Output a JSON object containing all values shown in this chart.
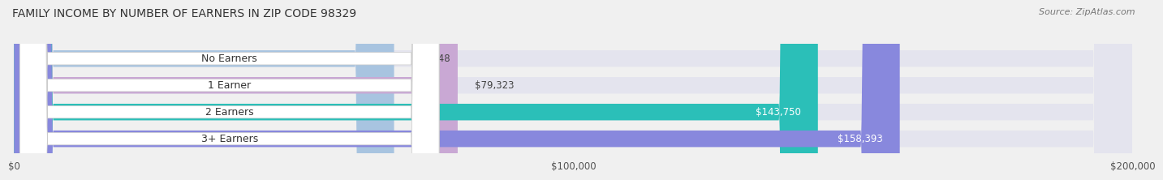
{
  "title": "FAMILY INCOME BY NUMBER OF EARNERS IN ZIP CODE 98329",
  "source": "Source: ZipAtlas.com",
  "categories": [
    "No Earners",
    "1 Earner",
    "2 Earners",
    "3+ Earners"
  ],
  "values": [
    67948,
    79323,
    143750,
    158393
  ],
  "value_labels": [
    "$67,948",
    "$79,323",
    "$143,750",
    "$158,393"
  ],
  "bar_colors": [
    "#a8c4e0",
    "#c9a8d4",
    "#2bbfb8",
    "#8888dd"
  ],
  "bar_label_colors": [
    "#555555",
    "#555555",
    "#ffffff",
    "#ffffff"
  ],
  "background_color": "#f0f0f0",
  "bar_bg_color": "#e4e4ee",
  "xlim": [
    0,
    200000
  ],
  "xticks": [
    0,
    100000,
    200000
  ],
  "xtick_labels": [
    "$0",
    "$100,000",
    "$200,000"
  ],
  "title_fontsize": 10,
  "source_fontsize": 8,
  "label_fontsize": 9,
  "value_fontsize": 8.5,
  "tick_fontsize": 8.5
}
